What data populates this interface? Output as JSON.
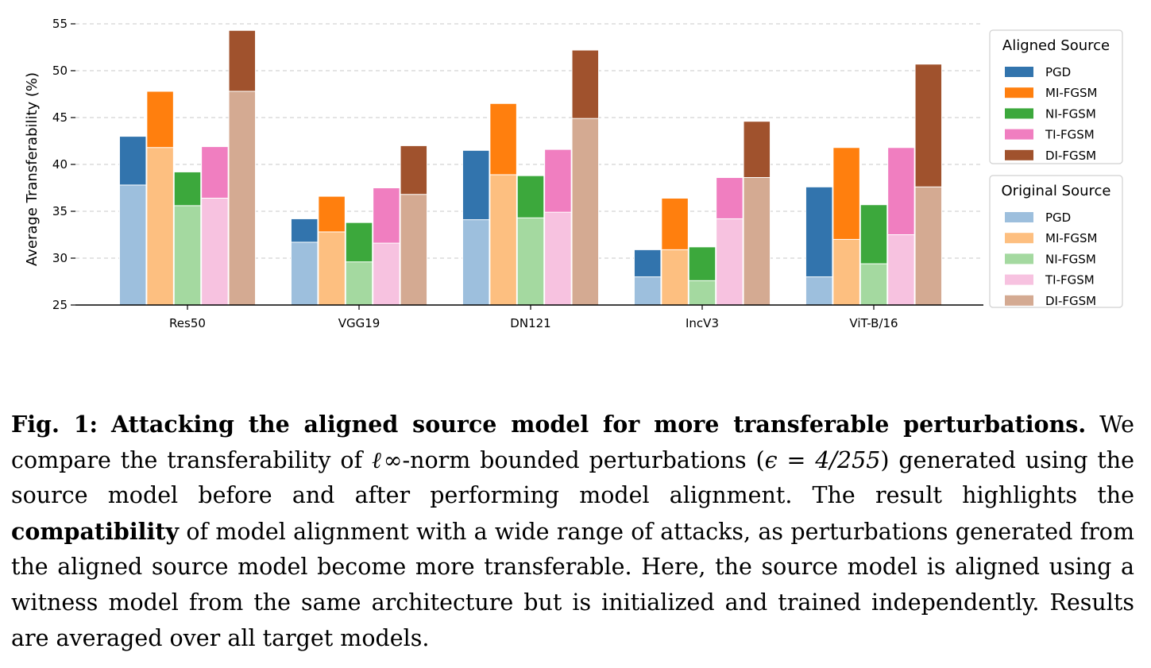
{
  "chart_data": {
    "type": "bar",
    "stacked_overlay": true,
    "ylabel": "Average Transferability (%)",
    "xlabel": "",
    "ylim": [
      25,
      55
    ],
    "yticks": [
      25,
      30,
      35,
      40,
      45,
      50,
      55
    ],
    "grid": "horizontal dashed",
    "categories": [
      "Res50",
      "VGG19",
      "DN121",
      "IncV3",
      "ViT-B/16"
    ],
    "attacks": [
      "PGD",
      "MI-FGSM",
      "NI-FGSM",
      "TI-FGSM",
      "DI-FGSM"
    ],
    "aligned_colors": [
      "#3274ad",
      "#ff7f0e",
      "#3ca83c",
      "#f07ec0",
      "#a0522d"
    ],
    "original_colors": [
      "#9dbfdd",
      "#fdbf80",
      "#a4d9a0",
      "#f7c2e0",
      "#d4aa92"
    ],
    "series": [
      {
        "name": "Original Source",
        "values": [
          [
            37.8,
            41.8,
            35.6,
            36.4,
            47.8
          ],
          [
            31.7,
            32.8,
            29.6,
            31.6,
            36.8
          ],
          [
            34.1,
            38.9,
            34.3,
            34.9,
            44.9
          ],
          [
            28.0,
            30.9,
            27.6,
            34.2,
            38.6
          ],
          [
            28.0,
            32.0,
            29.4,
            32.5,
            37.6
          ]
        ]
      },
      {
        "name": "Aligned Source",
        "values": [
          [
            43.0,
            47.8,
            39.2,
            41.9,
            54.3
          ],
          [
            34.2,
            36.6,
            33.8,
            37.5,
            42.0
          ],
          [
            41.5,
            46.5,
            38.8,
            41.6,
            52.2
          ],
          [
            30.9,
            36.4,
            31.2,
            38.6,
            44.6
          ],
          [
            37.6,
            41.8,
            35.7,
            41.8,
            50.7
          ]
        ]
      }
    ],
    "legend": {
      "placement": "right",
      "aligned_title": "Aligned Source",
      "original_title": "Original Source",
      "labels": [
        "PGD",
        "MI-FGSM",
        "NI-FGSM",
        "TI-FGSM",
        "DI-FGSM"
      ]
    }
  },
  "caption": {
    "fig_label": "Fig. 1:",
    "bold_title": "Attacking the aligned source model for more transferable perturbations.",
    "text_1": "We compare the transferability of",
    "math_norm": "ℓ∞",
    "text_2": "-norm bounded perturbations (",
    "math_eps": "ϵ = 4/255",
    "text_3": ") generated using the source model before and after performing model alignment. The result highlights the",
    "bold_word": "compatibility",
    "text_4": "of model alignment with a wide range of attacks, as perturbations generated from the aligned source model become more transferable. Here, the source model is aligned using a witness model from the same architecture but is initialized and trained independently. Results are averaged over all target models."
  }
}
